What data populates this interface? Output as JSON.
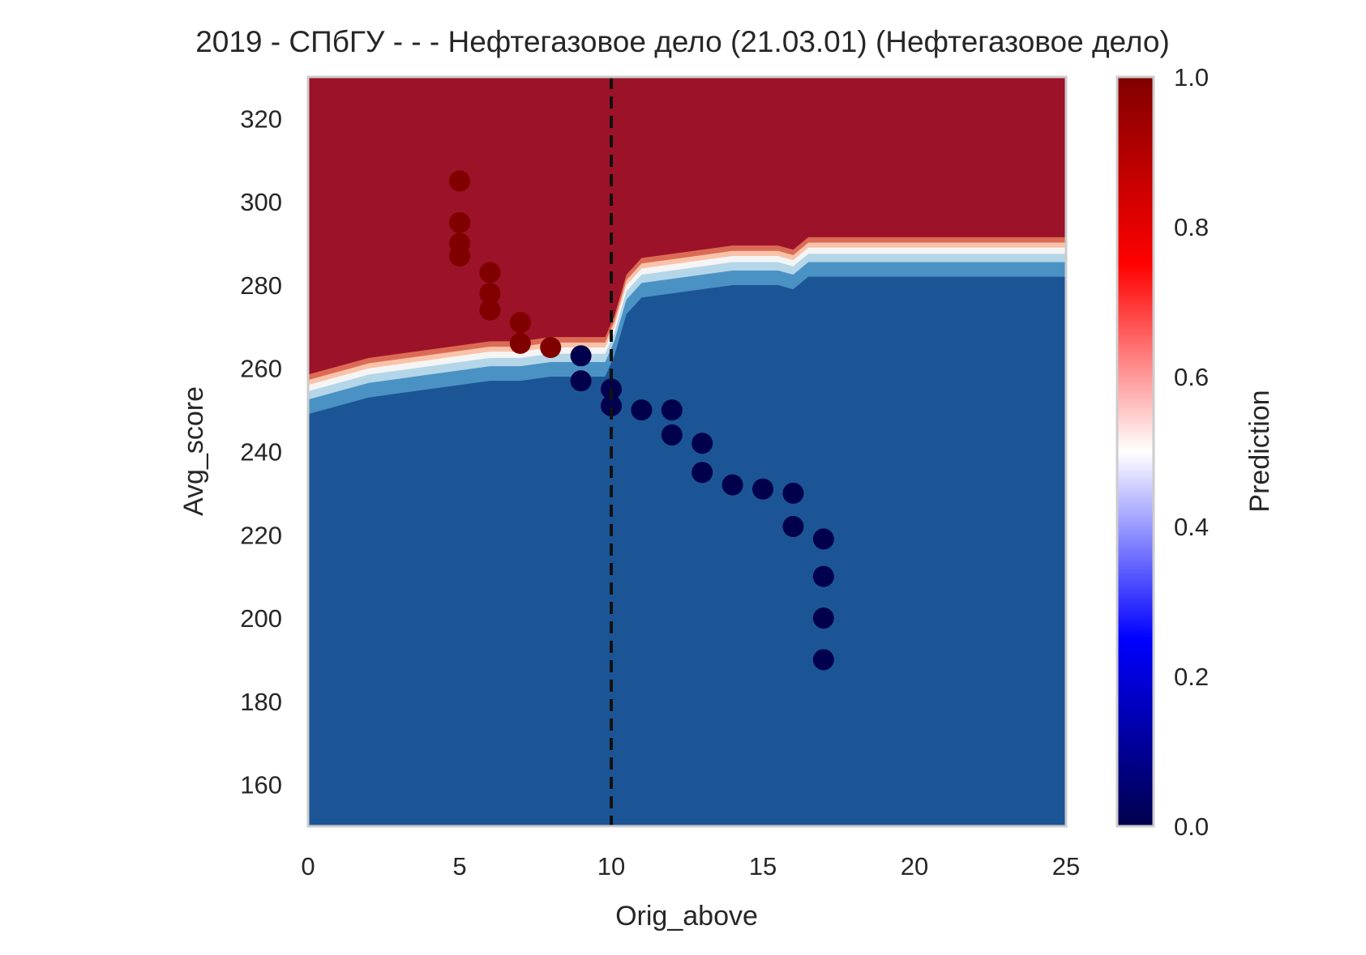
{
  "chart_data": {
    "type": "heatmap",
    "title": "2019 - СПбГУ - - - Нефтегазовое дело (21.03.01) (Нефтегазовое дело)",
    "xlabel": "Orig_above",
    "ylabel": "Avg_score",
    "xlim": [
      0,
      25
    ],
    "ylim": [
      150,
      330
    ],
    "xticks": [
      "0",
      "5",
      "10",
      "15",
      "20",
      "25"
    ],
    "yticks": [
      "160",
      "180",
      "200",
      "220",
      "240",
      "260",
      "280",
      "300",
      "320"
    ],
    "grid": false,
    "colorbar": {
      "label": "Prediction",
      "range": [
        0.0,
        1.0
      ],
      "ticks": [
        "0.0",
        "0.2",
        "0.4",
        "0.6",
        "0.8",
        "1.0"
      ],
      "colormap": "seismic",
      "stops": [
        "#00004c",
        "#0000ff",
        "#ffffff",
        "#ff0000",
        "#800000"
      ]
    },
    "contour_colors": {
      "low": "#1b5596",
      "band_1": "#4a92c4",
      "band_2": "#b4d6e8",
      "band_3": "#f5f5f5",
      "band_4": "#f9c3a9",
      "band_5": "#dc6b55",
      "high": "#9c1228"
    },
    "threshold_line": {
      "x": 10,
      "style": "dashed",
      "color": "#111111"
    },
    "boundary": {
      "x": [
        0,
        0.5,
        1,
        1.5,
        2,
        3,
        4,
        5,
        6,
        7,
        8,
        9,
        9.8,
        10.1,
        10.5,
        11,
        12,
        13,
        14,
        14.5,
        15.5,
        16,
        16.5,
        17,
        18,
        20,
        22,
        25
      ],
      "y": [
        256,
        257,
        258,
        259,
        260,
        261,
        262,
        263,
        264,
        264,
        265,
        265,
        265,
        270,
        280,
        284,
        285,
        286,
        287,
        287,
        287,
        286,
        289,
        289,
        289,
        289,
        289,
        289
      ]
    },
    "series": [
      {
        "name": "",
        "color": "#800000",
        "points": [
          {
            "x": 5,
            "y": [
              305,
              295,
              290,
              287
            ]
          },
          {
            "x": 6,
            "y": [
              283,
              278,
              274
            ]
          },
          {
            "x": 7,
            "y": [
              271,
              266
            ]
          },
          {
            "x": 8,
            "y": [
              265
            ]
          }
        ]
      },
      {
        "name": "",
        "color": "#00004c",
        "points": [
          {
            "x": 9,
            "y": [
              263,
              257
            ]
          },
          {
            "x": 10,
            "y": [
              255,
              251
            ]
          },
          {
            "x": 11,
            "y": [
              250
            ]
          },
          {
            "x": 12,
            "y": [
              250,
              244
            ]
          },
          {
            "x": 13,
            "y": [
              242,
              235
            ]
          },
          {
            "x": 14,
            "y": [
              232
            ]
          },
          {
            "x": 15,
            "y": [
              231
            ]
          },
          {
            "x": 16,
            "y": [
              230,
              222
            ]
          },
          {
            "x": 17,
            "y": [
              219,
              210,
              200,
              190
            ]
          }
        ]
      }
    ]
  }
}
